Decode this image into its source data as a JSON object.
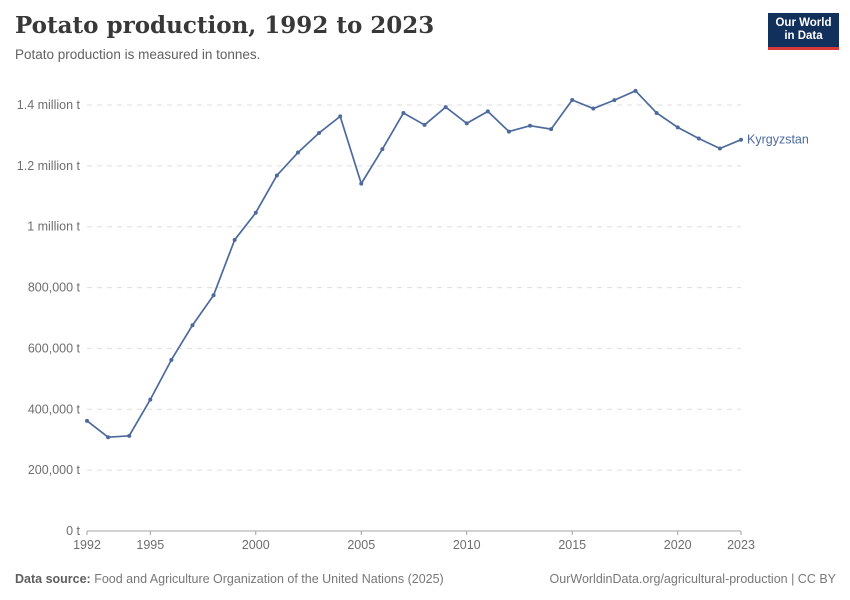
{
  "header": {
    "title": "Potato production, 1992 to 2023",
    "subtitle": "Potato production is measured in tonnes.",
    "logo_line1": "Our World",
    "logo_line2": "in Data"
  },
  "chart_data": {
    "type": "line",
    "title": "Potato production, 1992 to 2023",
    "unit": "tonnes",
    "xlim": [
      1992,
      2023
    ],
    "ylim": [
      0,
      1400000
    ],
    "grid": "horizontal-dashed",
    "legend": "end-of-line-label",
    "x_ticks": [
      1992,
      1995,
      2000,
      2005,
      2010,
      2015,
      2020,
      2023
    ],
    "y_ticks": [
      {
        "value": 0,
        "label": "0 t"
      },
      {
        "value": 200000,
        "label": "200,000 t"
      },
      {
        "value": 400000,
        "label": "400,000 t"
      },
      {
        "value": 600000,
        "label": "600,000 t"
      },
      {
        "value": 800000,
        "label": "800,000 t"
      },
      {
        "value": 1000000,
        "label": "1 million t"
      },
      {
        "value": 1200000,
        "label": "1.2 million t"
      },
      {
        "value": 1400000,
        "label": "1.4 million t"
      }
    ],
    "series": [
      {
        "name": "Kyrgyzstan",
        "color": "#4C6A9C",
        "x": [
          1992,
          1993,
          1994,
          1995,
          1996,
          1997,
          1998,
          1999,
          2000,
          2001,
          2002,
          2003,
          2004,
          2005,
          2006,
          2007,
          2008,
          2009,
          2010,
          2011,
          2012,
          2013,
          2014,
          2015,
          2016,
          2017,
          2018,
          2019,
          2020,
          2021,
          2022,
          2023
        ],
        "values": [
          362000,
          308300,
          312700,
          431800,
          562400,
          676200,
          774800,
          956900,
          1046000,
          1168400,
          1243800,
          1308100,
          1362600,
          1141600,
          1254800,
          1373800,
          1334500,
          1393100,
          1339600,
          1379200,
          1312700,
          1332000,
          1320700,
          1416400,
          1388400,
          1416000,
          1446600,
          1373800,
          1326500,
          1289900,
          1257000,
          1286000
        ]
      }
    ]
  },
  "footer": {
    "source_label": "Data source:",
    "source_text": " Food and Agriculture Organization of the United Nations (2025)",
    "link_text": "OurWorldinData.org/agricultural-production | CC BY"
  },
  "colors": {
    "line": "#4C6A9C",
    "grid": "#dedede",
    "axis": "#a3a3a3",
    "tick_label": "#6e6e6e",
    "logo_bg": "#12305c",
    "logo_accent": "#d7383a"
  }
}
